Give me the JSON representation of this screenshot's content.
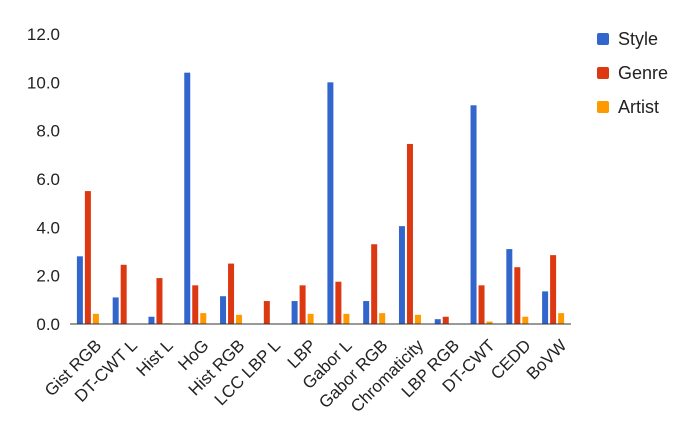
{
  "chart_data": {
    "type": "bar",
    "title": "",
    "xlabel": "",
    "ylabel": "",
    "ylim": [
      0,
      12
    ],
    "yticks": [
      "0.0",
      "2.0",
      "4.0",
      "6.0",
      "8.0",
      "10.0",
      "12.0"
    ],
    "grid": false,
    "legend_position": "right",
    "categories": [
      "Gist RGB",
      "DT-CWT L",
      "Hist L",
      "HoG",
      "Hist RGB",
      "LCC LBP L",
      "LBP",
      "Gabor L",
      "Gabor RGB",
      "Chromaticity",
      "LBP RGB",
      "DT-CWT",
      "CEDD",
      "BoVW"
    ],
    "series": [
      {
        "name": "Style",
        "color": "#3366cc",
        "values": [
          2.8,
          1.1,
          0.3,
          10.4,
          1.15,
          0.0,
          0.95,
          10.0,
          0.95,
          4.05,
          0.2,
          9.05,
          3.1,
          1.35
        ]
      },
      {
        "name": "Genre",
        "color": "#dc3912",
        "values": [
          5.5,
          2.45,
          1.9,
          1.6,
          2.5,
          0.95,
          1.6,
          1.75,
          3.3,
          7.45,
          0.3,
          1.6,
          2.35,
          2.85
        ]
      },
      {
        "name": "Artist",
        "color": "#ff9900",
        "values": [
          0.42,
          0.02,
          0.03,
          0.45,
          0.38,
          0.01,
          0.42,
          0.42,
          0.45,
          0.38,
          0.02,
          0.1,
          0.3,
          0.45
        ]
      }
    ]
  }
}
